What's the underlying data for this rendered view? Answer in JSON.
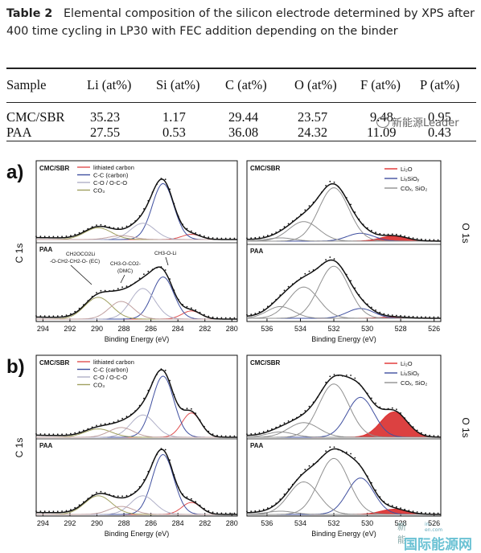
{
  "caption": {
    "label": "Table 2",
    "text": "Elemental composition of the silicon electrode determined by XPS after 400 time cycling in LP30 with FEC addition depending on the binder"
  },
  "table": {
    "headers": [
      "Sample",
      "Li (at%)",
      "Si (at%)",
      "C (at%)",
      "O (at%)",
      "F (at%)",
      "P (at%)"
    ],
    "rows": [
      [
        "CMC/SBR",
        "35.23",
        "1.17",
        "29.44",
        "23.57",
        "9.48",
        "0.95"
      ],
      [
        "PAA",
        "27.55",
        "0.53",
        "36.08",
        "24.32",
        "11.09",
        "0.43"
      ]
    ]
  },
  "watermark": {
    "text": "新能源Leader",
    "brand": "国际能源网",
    "brand_small": "新能",
    "brand_domain": "in-en.com"
  },
  "figure": {
    "panels": [
      {
        "label": "a)",
        "c1s": {
          "top": "CMC/SBR",
          "bottom": "PAA",
          "side": "C 1s"
        },
        "o1s": {
          "top": "CMC/SBR",
          "bottom": "PAA",
          "side": "O 1s"
        }
      },
      {
        "label": "b)",
        "c1s": {
          "top": "CMC/SBR",
          "bottom": "PAA",
          "side": "C 1s"
        },
        "o1s": {
          "top": "CMC/SBR",
          "bottom": "PAA",
          "side": "O 1s"
        }
      }
    ],
    "c1s_legend": [
      "lithiated carbon",
      "C-C (carbon)",
      "C-O / O-C-O",
      "CO3"
    ],
    "o1s_legend": [
      "Li2O",
      "LixSiOy",
      "COx, SiO2"
    ],
    "annotations_a": {
      "ec_line1": "CH2OCO2Li",
      "ec_line2": "-O-CH2-CH2-O- (EC)",
      "dmc_line1": "CH3-O-CO2-",
      "dmc_line2": "(DMC)",
      "ch3oli": "CH3-O-Li"
    },
    "xlabel": "Binding Energy (eV)",
    "c1s_ticks": [
      "294",
      "292",
      "290",
      "288",
      "286",
      "284",
      "282",
      "280"
    ],
    "o1s_ticks": [
      "536",
      "534",
      "532",
      "530",
      "528",
      "526"
    ]
  },
  "chart_data": [
    {
      "type": "line",
      "panel": "a",
      "region": "C 1s",
      "sample": "CMC/SBR",
      "xlim": [
        294,
        280
      ],
      "x": [
        294,
        291,
        290,
        288,
        286,
        285,
        284,
        283,
        282,
        280
      ],
      "y": [
        0.05,
        0.12,
        0.22,
        0.1,
        0.4,
        0.86,
        0.5,
        0.12,
        0.05,
        0.03
      ],
      "xlabel": "Binding Energy (eV)",
      "ylabel": "C 1s",
      "components": [
        "lithiated carbon",
        "C-C (carbon)",
        "C-O / O-C-O",
        "CO3"
      ]
    },
    {
      "type": "line",
      "panel": "a",
      "region": "C 1s",
      "sample": "PAA",
      "xlim": [
        294,
        280
      ],
      "x": [
        294,
        292,
        290,
        288,
        287,
        285,
        284,
        283,
        282,
        280
      ],
      "y": [
        0.05,
        0.15,
        0.33,
        0.3,
        0.5,
        0.83,
        0.4,
        0.15,
        0.05,
        0.03
      ],
      "xlabel": "Binding Energy (eV)",
      "ylabel": "C 1s",
      "components": [
        "lithiated carbon",
        "C-C (carbon)",
        "C-O / O-C-O",
        "CO3"
      ]
    },
    {
      "type": "line",
      "panel": "a",
      "region": "O 1s",
      "sample": "CMC/SBR",
      "xlim": [
        537,
        526
      ],
      "x": [
        537,
        535,
        534,
        533,
        532,
        531,
        530,
        529,
        528,
        526
      ],
      "y": [
        0.04,
        0.1,
        0.3,
        0.65,
        0.83,
        0.6,
        0.25,
        0.12,
        0.08,
        0.02
      ],
      "xlabel": "Binding Energy (eV)",
      "ylabel": "O 1s",
      "components": [
        "Li2O",
        "LixSiOy",
        "COx, SiO2"
      ]
    },
    {
      "type": "line",
      "panel": "a",
      "region": "O 1s",
      "sample": "PAA",
      "xlim": [
        537,
        526
      ],
      "x": [
        537,
        535,
        534,
        533,
        532,
        531,
        530,
        529,
        528,
        526
      ],
      "y": [
        0.04,
        0.2,
        0.4,
        0.55,
        0.83,
        0.5,
        0.2,
        0.06,
        0.04,
        0.02
      ],
      "xlabel": "Binding Energy (eV)",
      "ylabel": "O 1s",
      "components": [
        "Li2O",
        "LixSiOy",
        "COx, SiO2"
      ]
    },
    {
      "type": "line",
      "panel": "b",
      "region": "C 1s",
      "sample": "CMC/SBR",
      "xlim": [
        294,
        280
      ],
      "x": [
        294,
        291,
        290,
        288,
        286,
        284.5,
        283,
        282,
        281,
        280
      ],
      "y": [
        0.05,
        0.1,
        0.15,
        0.15,
        0.4,
        0.9,
        0.6,
        0.3,
        0.1,
        0.03
      ],
      "xlabel": "Binding Energy (eV)",
      "ylabel": "C 1s",
      "components": [
        "lithiated carbon",
        "C-C (carbon)",
        "C-O / O-C-O",
        "CO3"
      ]
    },
    {
      "type": "line",
      "panel": "b",
      "region": "C 1s",
      "sample": "PAA",
      "xlim": [
        294,
        280
      ],
      "x": [
        294,
        291,
        290,
        288,
        286.5,
        285,
        284,
        283,
        282,
        280
      ],
      "y": [
        0.05,
        0.12,
        0.28,
        0.15,
        0.3,
        0.9,
        0.5,
        0.2,
        0.06,
        0.03
      ],
      "xlabel": "Binding Energy (eV)",
      "ylabel": "C 1s",
      "components": [
        "lithiated carbon",
        "C-C (carbon)",
        "C-O / O-C-O",
        "CO3"
      ]
    },
    {
      "type": "line",
      "panel": "b",
      "region": "O 1s",
      "sample": "CMC/SBR",
      "xlim": [
        537,
        526
      ],
      "x": [
        537,
        535,
        534,
        533,
        532,
        531,
        530,
        529,
        528,
        526
      ],
      "y": [
        0.04,
        0.12,
        0.25,
        0.6,
        0.85,
        0.8,
        0.6,
        0.35,
        0.15,
        0.03
      ],
      "xlabel": "Binding Energy (eV)",
      "ylabel": "O 1s",
      "components": [
        "Li2O",
        "LixSiOy",
        "COx, SiO2"
      ]
    },
    {
      "type": "line",
      "panel": "b",
      "region": "O 1s",
      "sample": "PAA",
      "xlim": [
        537,
        526
      ],
      "x": [
        537,
        535,
        534,
        533,
        532,
        531,
        530,
        529,
        528,
        526
      ],
      "y": [
        0.03,
        0.1,
        0.25,
        0.55,
        0.88,
        0.7,
        0.6,
        0.2,
        0.08,
        0.02
      ],
      "xlabel": "Binding Energy (eV)",
      "ylabel": "O 1s",
      "components": [
        "Li2O",
        "LixSiOy",
        "COx, SiO2"
      ]
    }
  ]
}
